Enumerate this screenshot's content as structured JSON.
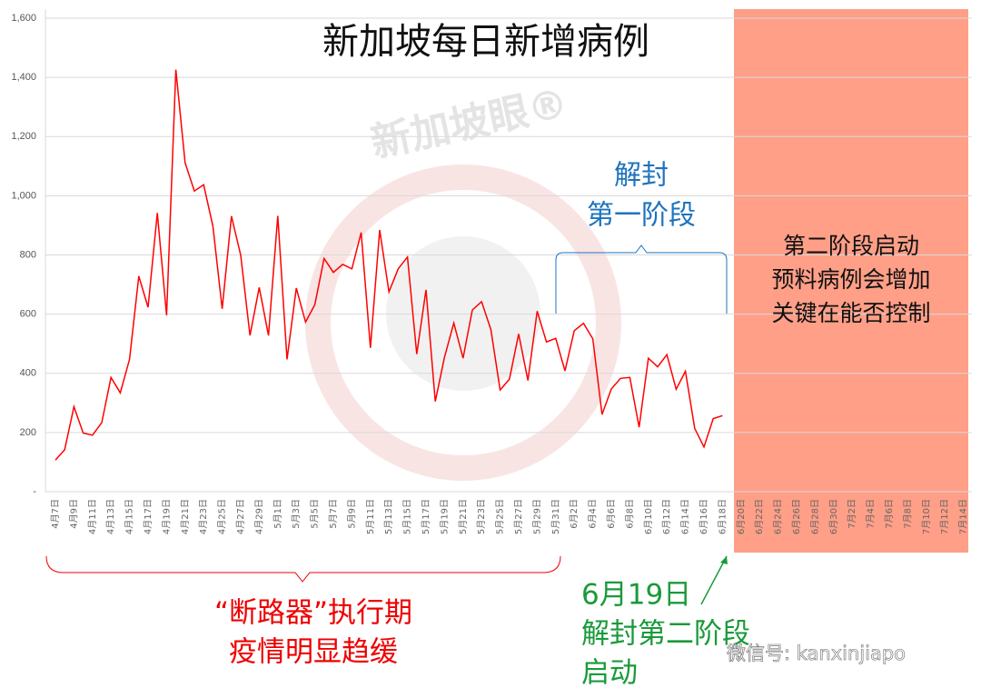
{
  "chart_data": {
    "type": "line",
    "title": "新加坡每日新增病例",
    "categories": [
      "4月7日",
      null,
      "4月9日",
      null,
      "4月11日",
      null,
      "4月13日",
      null,
      "4月15日",
      null,
      "4月17日",
      null,
      "4月19日",
      null,
      "4月21日",
      null,
      "4月23日",
      null,
      "4月25日",
      null,
      "4月27日",
      null,
      "4月29日",
      null,
      "5月1日",
      null,
      "5月3日",
      null,
      "5月5日",
      null,
      "5月7日",
      null,
      "5月9日",
      null,
      "5月11日",
      null,
      "5月13日",
      null,
      "5月15日",
      null,
      "5月17日",
      null,
      "5月19日",
      null,
      "5月21日",
      null,
      "5月23日",
      null,
      "5月25日",
      null,
      "5月27日",
      null,
      "5月29日",
      null,
      "5月31日",
      null,
      "6月2日",
      null,
      "6月4日",
      null,
      "6月6日",
      null,
      "6月8日",
      null,
      "6月10日",
      null,
      "6月12日",
      null,
      "6月14日",
      null,
      "6月16日",
      null,
      "6月18日",
      null,
      "6月20日",
      null,
      "6月22日",
      null,
      "6月24日",
      null,
      "6月26日",
      null,
      "6月28日",
      null,
      "6月30日",
      null,
      "7月2日",
      null,
      "7月4日",
      null,
      "7月6日",
      null,
      "7月8日",
      null,
      "7月10日",
      null,
      "7月12日",
      null,
      "7月14日"
    ],
    "values": [
      107,
      142,
      287,
      198,
      191,
      233,
      386,
      334,
      447,
      728,
      623,
      942,
      596,
      1426,
      1111,
      1016,
      1037,
      897,
      618,
      931,
      799,
      528,
      690,
      528,
      932,
      447,
      688,
      573,
      632,
      788,
      741,
      768,
      753,
      876,
      486,
      884,
      675,
      753,
      793,
      465,
      682,
      305,
      455,
      570,
      451,
      614,
      642,
      548,
      344,
      380,
      533,
      376,
      610,
      506,
      518,
      408,
      544,
      569,
      517,
      261,
      347,
      383,
      386,
      218,
      451,
      422,
      463,
      346,
      407,
      214,
      151,
      247,
      257,
      null,
      null,
      null,
      null,
      null,
      null,
      null,
      null,
      null,
      null,
      null,
      null,
      null,
      null,
      null,
      null,
      null,
      null,
      null,
      null,
      null,
      null,
      null,
      null,
      null,
      null
    ],
    "color": "#ff0000",
    "ylim": [
      0,
      1600
    ],
    "yticks": [
      {
        "value": 0,
        "label": "-"
      },
      200,
      400,
      600,
      800,
      {
        "value": 1000,
        "label": "1,000"
      },
      {
        "value": 1200,
        "label": "1,200"
      },
      {
        "value": 1400,
        "label": "1,400"
      },
      {
        "value": 1600,
        "label": "1,600"
      }
    ],
    "grid": true,
    "annotations": {
      "phase1": [
        "解封",
        "第一阶段"
      ],
      "phase2": [
        "第二阶段启动",
        "预料病例会增加",
        "关键在能否控制"
      ],
      "circuit_breaker": [
        "“断路器”执行期",
        "疫情明显趋缓"
      ],
      "june19": [
        "6月19日",
        "解封第二阶段",
        "启动"
      ],
      "watermark": "新加坡眼®",
      "wechat": "微信号: kanxinjiapo"
    }
  }
}
